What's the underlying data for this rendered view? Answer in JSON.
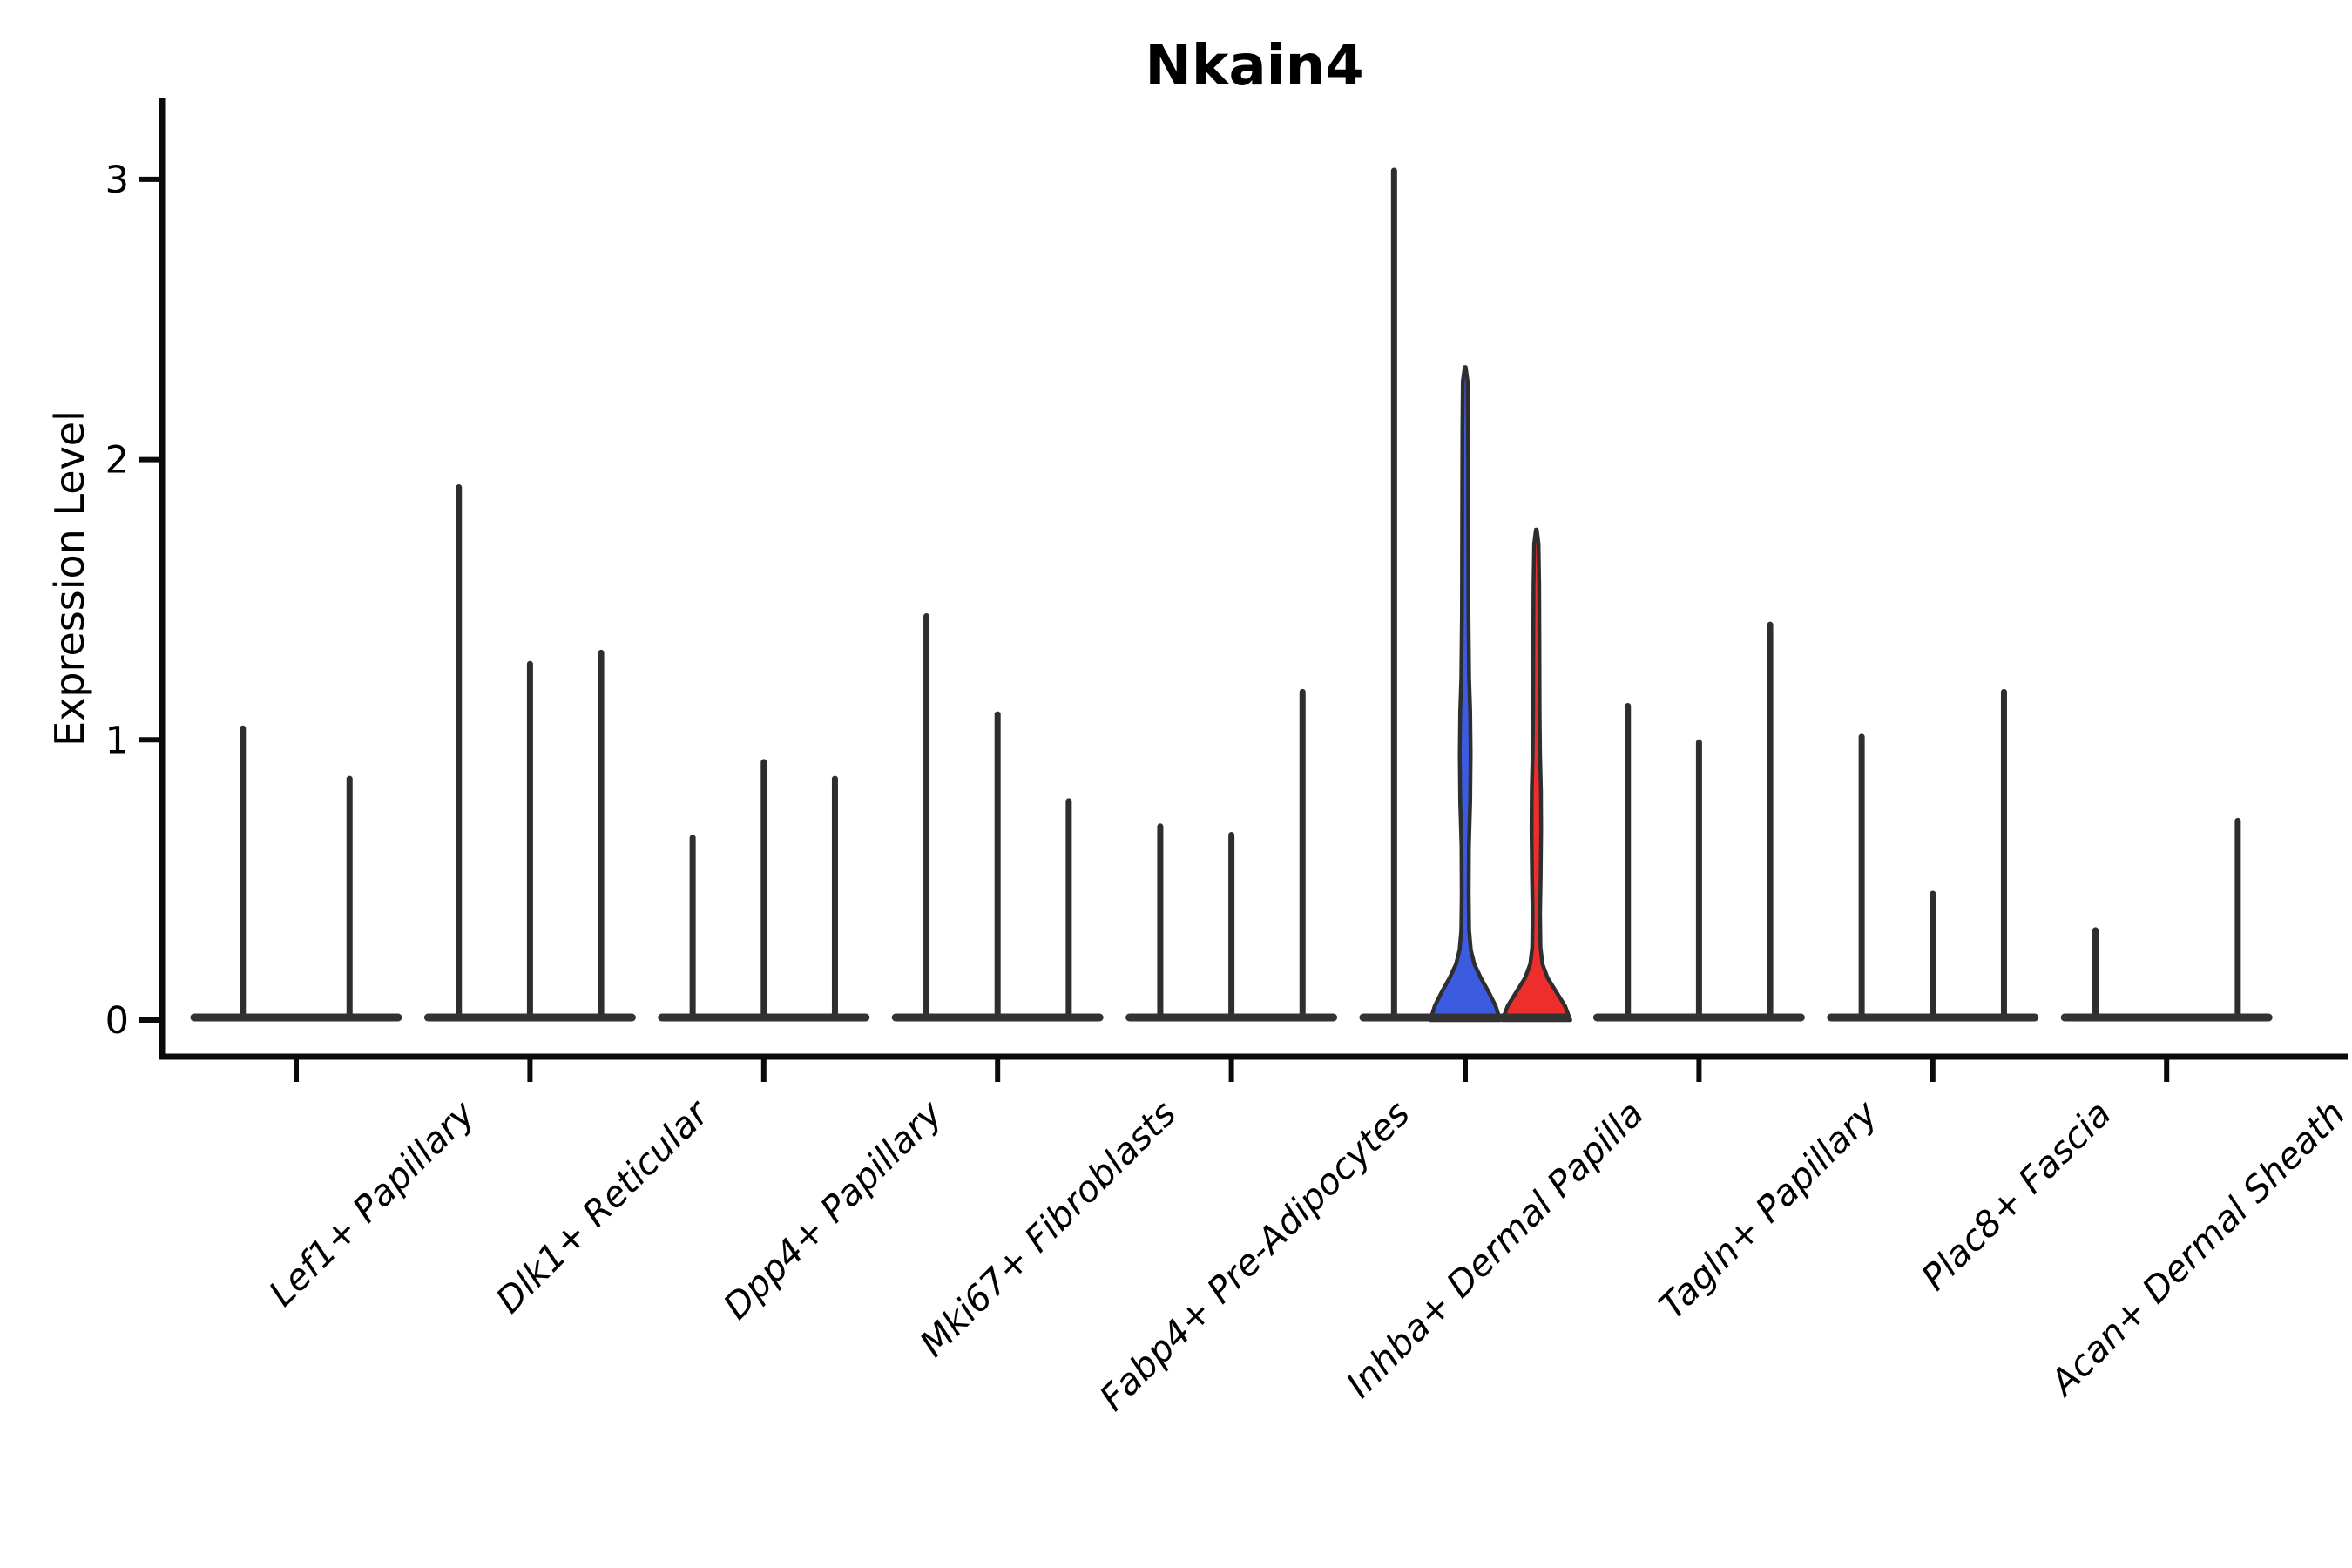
{
  "title": "Nkain4",
  "ylabel": "Expression Level",
  "chart_data": {
    "type": "violin",
    "title": "Nkain4",
    "xlabel": "",
    "ylabel": "Expression Level",
    "yticks": [
      0,
      1,
      2,
      3
    ],
    "ylim": [
      0,
      3.35
    ],
    "grid": false,
    "legend": "none",
    "categories": [
      "Lef1+ Papillary",
      "Dlk1+ Reticular",
      "Dpp4+ Papillary",
      "Mki67+ Fibroblasts",
      "Fabp4+ Pre-Adipocytes",
      "Inhba+ Dermal Papilla",
      "Tagln+ Papillary",
      "Plac8+ Fascia",
      "Acan+ Dermal Sheath"
    ],
    "groups": [
      {
        "category": "Lef1+ Papillary",
        "violins": [
          {
            "peak": 1.05
          },
          {
            "peak": 0.87
          }
        ]
      },
      {
        "category": "Dlk1+ Reticular",
        "violins": [
          {
            "peak": 1.91
          },
          {
            "peak": 1.28
          },
          {
            "peak": 1.32
          }
        ]
      },
      {
        "category": "Dpp4+ Papillary",
        "violins": [
          {
            "peak": 0.66
          },
          {
            "peak": 0.93
          },
          {
            "peak": 0.87
          }
        ]
      },
      {
        "category": "Mki67+ Fibroblasts",
        "violins": [
          {
            "peak": 1.45
          },
          {
            "peak": 1.1
          },
          {
            "peak": 0.79
          }
        ]
      },
      {
        "category": "Fabp4+ Pre-Adipocytes",
        "violins": [
          {
            "peak": 0.7
          },
          {
            "peak": 0.67
          },
          {
            "peak": 1.18
          }
        ]
      },
      {
        "category": "Inhba+ Dermal Papilla",
        "violins": [
          {
            "peak": 3.04
          },
          {
            "peak": 2.33,
            "color": "blue",
            "bell": true
          },
          {
            "peak": 1.75,
            "color": "red",
            "bell": true
          }
        ]
      },
      {
        "category": "Tagln+ Papillary",
        "violins": [
          {
            "peak": 1.13
          },
          {
            "peak": 1.0
          },
          {
            "peak": 1.42
          }
        ]
      },
      {
        "category": "Plac8+ Fascia",
        "violins": [
          {
            "peak": 1.02
          },
          {
            "peak": 0.46
          },
          {
            "peak": 1.18
          }
        ]
      },
      {
        "category": "Acan+ Dermal Sheath",
        "violins": [
          {
            "peak": 0.33
          },
          {
            "peak": 0.0
          },
          {
            "peak": 0.72
          }
        ]
      }
    ],
    "colors": {
      "blue": "#3b5ce0",
      "red": "#ee2d2d",
      "line": "#2e2e2e",
      "base": "#333333",
      "axis": "#0a0a0a"
    }
  }
}
